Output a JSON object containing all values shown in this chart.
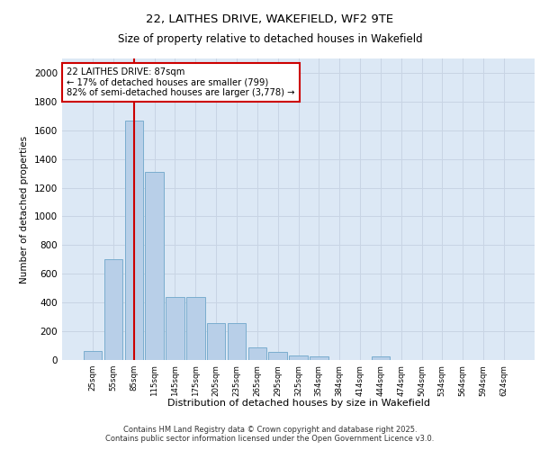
{
  "title1": "22, LAITHES DRIVE, WAKEFIELD, WF2 9TE",
  "title2": "Size of property relative to detached houses in Wakefield",
  "xlabel": "Distribution of detached houses by size in Wakefield",
  "ylabel": "Number of detached properties",
  "categories": [
    "25sqm",
    "55sqm",
    "85sqm",
    "115sqm",
    "145sqm",
    "175sqm",
    "205sqm",
    "235sqm",
    "265sqm",
    "295sqm",
    "325sqm",
    "354sqm",
    "384sqm",
    "414sqm",
    "444sqm",
    "474sqm",
    "504sqm",
    "534sqm",
    "564sqm",
    "594sqm",
    "624sqm"
  ],
  "values": [
    65,
    700,
    1670,
    1310,
    440,
    440,
    255,
    255,
    90,
    55,
    30,
    25,
    0,
    0,
    25,
    0,
    0,
    0,
    0,
    0,
    0
  ],
  "bar_color": "#b8cfe8",
  "bar_edge_color": "#7aadcf",
  "grid_color": "#c8d4e4",
  "annotation_text": "22 LAITHES DRIVE: 87sqm\n← 17% of detached houses are smaller (799)\n82% of semi-detached houses are larger (3,778) →",
  "annotation_box_color": "#cc0000",
  "vline_color": "#cc0000",
  "ylim": [
    0,
    2100
  ],
  "yticks": [
    0,
    200,
    400,
    600,
    800,
    1000,
    1200,
    1400,
    1600,
    1800,
    2000
  ],
  "footer": "Contains HM Land Registry data © Crown copyright and database right 2025.\nContains public sector information licensed under the Open Government Licence v3.0.",
  "bg_color": "#dce8f5",
  "fig_bg": "#ffffff"
}
